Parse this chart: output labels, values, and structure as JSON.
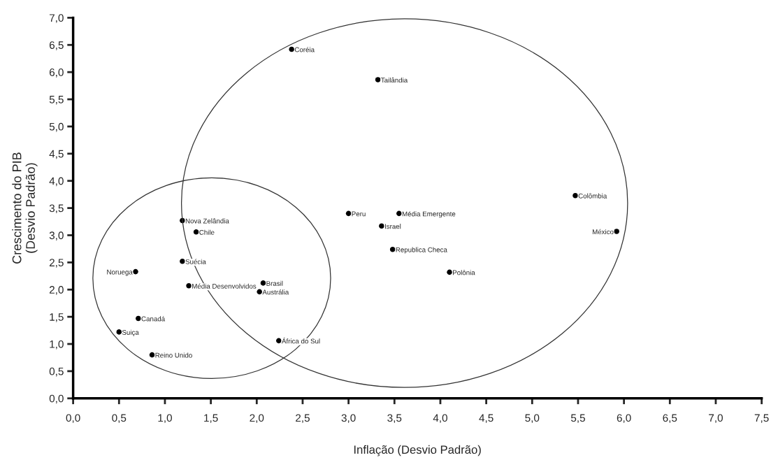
{
  "chart_data": {
    "type": "scatter",
    "xlabel": "Inflação (Desvio Padrão)",
    "ylabel": "Crescimento do PIB\n(Desvio Padrão)",
    "x": [
      2.38,
      3.32,
      1.19,
      1.34,
      1.19,
      0.68,
      1.26,
      2.07,
      2.03,
      0.71,
      0.5,
      2.24,
      0.86,
      3.0,
      3.55,
      3.36,
      3.48,
      4.1,
      5.47,
      5.92
    ],
    "series": [
      {
        "color": "#000000",
        "values": [
          6.42,
          5.86,
          3.27,
          3.06,
          2.52,
          2.33,
          2.07,
          2.12,
          1.96,
          1.47,
          1.22,
          1.06,
          0.8,
          3.4,
          3.4,
          3.17,
          2.74,
          2.32,
          3.73,
          3.07
        ]
      }
    ],
    "annotations": [
      {
        "text": "Coréia",
        "x": 2.38,
        "y": 6.42
      },
      {
        "text": "Tailândia",
        "x": 3.32,
        "y": 5.86
      },
      {
        "text": "Nova Zelândia",
        "x": 1.19,
        "y": 3.27
      },
      {
        "text": "Chile",
        "x": 1.34,
        "y": 3.06
      },
      {
        "text": "Suécia",
        "x": 1.19,
        "y": 2.52
      },
      {
        "text": "Noruega",
        "x": 0.68,
        "y": 2.33
      },
      {
        "text": "Média Desenvolvidos",
        "x": 1.26,
        "y": 2.07
      },
      {
        "text": "Brasil",
        "x": 2.07,
        "y": 2.12
      },
      {
        "text": "Austrália",
        "x": 2.03,
        "y": 1.96
      },
      {
        "text": "Canadá",
        "x": 0.71,
        "y": 1.47
      },
      {
        "text": "Suiça",
        "x": 0.5,
        "y": 1.22
      },
      {
        "text": "África do Sul",
        "x": 2.24,
        "y": 1.06
      },
      {
        "text": "Reino Unido",
        "x": 0.86,
        "y": 0.8
      },
      {
        "text": "Peru",
        "x": 3.0,
        "y": 3.4
      },
      {
        "text": "Média Emergente",
        "x": 3.55,
        "y": 3.4
      },
      {
        "text": "Israel",
        "x": 3.36,
        "y": 3.17
      },
      {
        "text": "Republica Checa",
        "x": 3.48,
        "y": 2.74
      },
      {
        "text": "Polônia",
        "x": 4.1,
        "y": 2.32
      },
      {
        "text": "Colômbia",
        "x": 5.47,
        "y": 3.73
      },
      {
        "text": "México",
        "x": 5.92,
        "y": 3.07
      }
    ],
    "xlim": [
      0,
      7.5
    ],
    "xticks": [
      {
        "value": 0,
        "label": "0,0"
      },
      {
        "value": 0.5,
        "label": "0,5"
      },
      {
        "value": 1,
        "label": "1,0"
      },
      {
        "value": 1.5,
        "label": "1,5"
      },
      {
        "value": 2,
        "label": "2,0"
      },
      {
        "value": 2.5,
        "label": "2,5"
      },
      {
        "value": 3,
        "label": "3,0"
      },
      {
        "value": 3.5,
        "label": "3,5"
      },
      {
        "value": 4,
        "label": "4,0"
      },
      {
        "value": 4.5,
        "label": "4,5"
      },
      {
        "value": 5,
        "label": "5,0"
      },
      {
        "value": 5.5,
        "label": "5,5"
      },
      {
        "value": 6,
        "label": "6,0"
      },
      {
        "value": 6.5,
        "label": "6,5"
      },
      {
        "value": 7,
        "label": "7,0"
      },
      {
        "value": 7.5,
        "label": "7,5"
      }
    ],
    "ylim": [
      0,
      7
    ],
    "yticks": [
      {
        "value": 0,
        "label": "0,0"
      },
      {
        "value": 0.5,
        "label": "0,5"
      },
      {
        "value": 1,
        "label": "1,0"
      },
      {
        "value": 1.5,
        "label": "1,5"
      },
      {
        "value": 2,
        "label": "2,0"
      },
      {
        "value": 2.5,
        "label": "2,5"
      },
      {
        "value": 3,
        "label": "3,0"
      },
      {
        "value": 3.5,
        "label": "3,5"
      },
      {
        "value": 4,
        "label": "4,0"
      },
      {
        "value": 4.5,
        "label": "4,5"
      },
      {
        "value": 5,
        "label": "5,0"
      },
      {
        "value": 5.5,
        "label": "5,5"
      },
      {
        "value": 6,
        "label": "6,0"
      },
      {
        "value": 6.5,
        "label": "6,5"
      },
      {
        "value": 7,
        "label": "7,0"
      }
    ],
    "marker": "circle",
    "grid": false,
    "legend": false
  }
}
